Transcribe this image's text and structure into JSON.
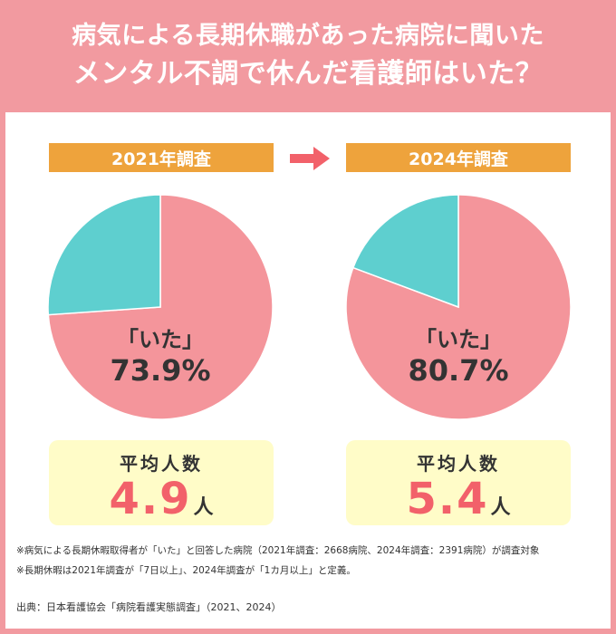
{
  "header": {
    "line1": "病気による長期休職があった病院に聞いた",
    "line2": "メンタル不調で休んだ看護師はいた？"
  },
  "colors": {
    "header_bg": "#f29aa0",
    "year_label_bg": "#eea33c",
    "pie_yes": "#f4959b",
    "pie_no": "#5ecfcf",
    "arrow": "#f2616a",
    "avg_box_bg": "#fffcc8",
    "avg_value": "#f2616a"
  },
  "chart_data": [
    {
      "type": "pie",
      "title": "2021年調査",
      "slices": [
        {
          "label": "「いた」",
          "value": 73.9,
          "value_label": "73.9%",
          "color": "#f4959b"
        },
        {
          "label": "",
          "value": 26.1,
          "color": "#5ecfcf"
        }
      ]
    },
    {
      "type": "pie",
      "title": "2024年調査",
      "slices": [
        {
          "label": "「いた」",
          "value": 80.7,
          "value_label": "80.7%",
          "color": "#f4959b"
        },
        {
          "label": "",
          "value": 19.3,
          "color": "#5ecfcf"
        }
      ]
    }
  ],
  "averages": [
    {
      "title": "平均人数",
      "value": "4.9",
      "unit": "人"
    },
    {
      "title": "平均人数",
      "value": "5.4",
      "unit": "人"
    }
  ],
  "notes": [
    "※病気による長期休暇取得者が「いた」と回答した病院（2021年調査：2668病院、2024年調査：2391病院）が調査対象",
    "※長期休暇は2021年調査が「7日以上」、2024年調査が「1カ月以上」と定義。"
  ],
  "source": "出典：日本看護協会「病院看護実態調査」（2021、2024）",
  "icons": {
    "arrow": "right-arrow-icon"
  }
}
